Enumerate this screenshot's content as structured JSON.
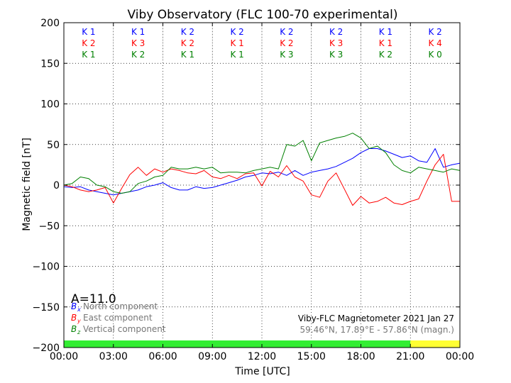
{
  "chart_data": {
    "type": "line",
    "title": "Viby Observatory (FLC 100-70 experimental)",
    "xlabel": "Time [UTC]",
    "ylabel": "Magnetic field [nT]",
    "xlim": [
      0,
      24
    ],
    "ylim": [
      -200,
      200
    ],
    "x_ticks": [
      {
        "v": 0,
        "label": "00:00"
      },
      {
        "v": 3,
        "label": "03:00"
      },
      {
        "v": 6,
        "label": "06:00"
      },
      {
        "v": 9,
        "label": "09:00"
      },
      {
        "v": 12,
        "label": "12:00"
      },
      {
        "v": 15,
        "label": "15:00"
      },
      {
        "v": 18,
        "label": "18:00"
      },
      {
        "v": 21,
        "label": "21:00"
      },
      {
        "v": 24,
        "label": "00:00"
      }
    ],
    "y_ticks": [
      {
        "v": 200,
        "label": "200"
      },
      {
        "v": 150,
        "label": "150"
      },
      {
        "v": 100,
        "label": "100"
      },
      {
        "v": 50,
        "label": "50"
      },
      {
        "v": 0,
        "label": "0"
      },
      {
        "v": -50,
        "label": "−50"
      },
      {
        "v": -100,
        "label": "−100"
      },
      {
        "v": -150,
        "label": "−150"
      },
      {
        "v": -200,
        "label": "−200"
      }
    ],
    "grid": true,
    "series": [
      {
        "name": "North component",
        "color": "#0000ff",
        "x": [
          0,
          0.5,
          1,
          1.5,
          2,
          2.5,
          3,
          3.5,
          4,
          4.5,
          5,
          5.5,
          6,
          6.5,
          7,
          7.5,
          8,
          8.5,
          9,
          9.5,
          10,
          10.5,
          11,
          11.5,
          12,
          12.5,
          13,
          13.5,
          14,
          14.5,
          15,
          15.5,
          16,
          16.5,
          17,
          17.5,
          18,
          18.5,
          19,
          19.5,
          20,
          20.5,
          21,
          21.5,
          22,
          22.5,
          23,
          23.5,
          24
        ],
        "y": [
          -2,
          -3,
          -2,
          -6,
          -8,
          -10,
          -12,
          -10,
          -8,
          -6,
          -2,
          0,
          3,
          -3,
          -6,
          -6,
          -2,
          -4,
          -3,
          0,
          3,
          6,
          10,
          12,
          15,
          14,
          16,
          12,
          18,
          12,
          16,
          18,
          20,
          23,
          28,
          33,
          40,
          45,
          45,
          42,
          38,
          34,
          36,
          30,
          28,
          45,
          22,
          25,
          27
        ]
      },
      {
        "name": "East component",
        "color": "#ff0000",
        "x": [
          0,
          0.5,
          1,
          1.5,
          2,
          2.5,
          3,
          3.5,
          4,
          4.5,
          5,
          5.5,
          6,
          6.5,
          7,
          7.5,
          8,
          8.5,
          9,
          9.5,
          10,
          10.5,
          11,
          11.5,
          12,
          12.5,
          13,
          13.5,
          14,
          14.5,
          15,
          15.5,
          16,
          16.5,
          17,
          17.5,
          18,
          18.5,
          19,
          19.5,
          20,
          20.5,
          21,
          21.5,
          22,
          22.5,
          23,
          23.5,
          24
        ],
        "y": [
          0,
          -2,
          -6,
          -8,
          -6,
          -3,
          -22,
          -4,
          13,
          22,
          12,
          20,
          16,
          20,
          18,
          15,
          14,
          18,
          10,
          8,
          12,
          8,
          14,
          15,
          -1,
          17,
          10,
          24,
          10,
          5,
          -12,
          -15,
          5,
          15,
          -5,
          -25,
          -14,
          -22,
          -20,
          -15,
          -22,
          -24,
          -20,
          -17,
          5,
          25,
          38,
          -20,
          -20
        ]
      },
      {
        "name": "Vertical component",
        "color": "#008000",
        "x": [
          0,
          0.5,
          1,
          1.5,
          2,
          2.5,
          3,
          3.5,
          4,
          4.5,
          5,
          5.5,
          6,
          6.5,
          7,
          7.5,
          8,
          8.5,
          9,
          9.5,
          10,
          10.5,
          11,
          11.5,
          12,
          12.5,
          13,
          13.5,
          14,
          14.5,
          15,
          15.5,
          16,
          16.5,
          17,
          17.5,
          18,
          18.5,
          19,
          19.5,
          20,
          20.5,
          21,
          21.5,
          22,
          22.5,
          23,
          23.5,
          24
        ],
        "y": [
          0,
          2,
          10,
          8,
          0,
          -2,
          -8,
          -10,
          -8,
          2,
          5,
          10,
          12,
          22,
          20,
          20,
          22,
          20,
          22,
          15,
          16,
          16,
          15,
          18,
          20,
          22,
          20,
          50,
          48,
          55,
          30,
          52,
          55,
          58,
          60,
          64,
          58,
          45,
          48,
          40,
          25,
          18,
          15,
          22,
          20,
          18,
          16,
          20,
          18
        ]
      }
    ],
    "k_index_columns": [
      {
        "row1": "K 1",
        "row2": "K 2",
        "row3": "K 1"
      },
      {
        "row1": "K 1",
        "row2": "K 3",
        "row3": "K 2"
      },
      {
        "row1": "K 2",
        "row2": "K 2",
        "row3": "K 1"
      },
      {
        "row1": "K 2",
        "row2": "K 1",
        "row3": "K 1"
      },
      {
        "row1": "K 2",
        "row2": "K 2",
        "row3": "K 3"
      },
      {
        "row1": "K 2",
        "row2": "K 3",
        "row3": "K 3"
      },
      {
        "row1": "K 1",
        "row2": "K 1",
        "row3": "K 2"
      },
      {
        "row1": "K 2",
        "row2": "K 4",
        "row3": "K 0"
      }
    ],
    "status_bar": [
      {
        "from": 0,
        "to": 21,
        "color": "#33ee33"
      },
      {
        "from": 21,
        "to": 24,
        "color": "#ffff33"
      }
    ],
    "a_index": "A=11.0",
    "legend": [
      {
        "symbol": "B",
        "sub": "x",
        "label": "North component",
        "color": "#0000ff"
      },
      {
        "symbol": "B",
        "sub": "y",
        "label": "East component",
        "color": "#ff0000"
      },
      {
        "symbol": "B",
        "sub": "z",
        "label": "Vertical component",
        "color": "#008000"
      }
    ],
    "legend_placement": "lower-left",
    "annotation_line1": "Viby-FLC Magnetometer 2021 Jan 27",
    "annotation_line2": "59.46°N, 17.89°E - 57.86°N (magn.)"
  }
}
